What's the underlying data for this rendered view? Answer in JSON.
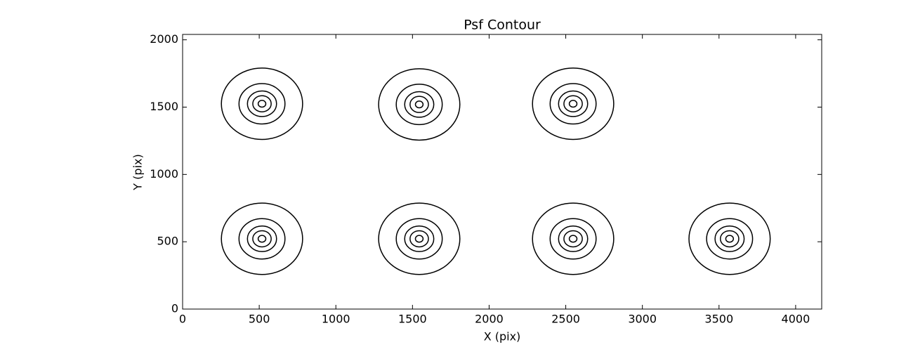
{
  "chart_data": {
    "type": "contour",
    "title": "Psf Contour",
    "x_label": "X (pix)",
    "y_label": "Y (pix)",
    "xlim": [
      0,
      4170
    ],
    "ylim": [
      0,
      2040
    ],
    "xticks": [
      0,
      500,
      1000,
      1500,
      2000,
      2500,
      3000,
      3500,
      4000
    ],
    "yticks": [
      0,
      500,
      1000,
      1500,
      2000
    ],
    "color": "#000000",
    "levels": [
      265,
      150,
      95,
      60,
      25
    ],
    "sources": [
      {
        "x": 518,
        "y": 1525
      },
      {
        "x": 1544,
        "y": 1520
      },
      {
        "x": 2548,
        "y": 1525
      },
      {
        "x": 518,
        "y": 522
      },
      {
        "x": 1544,
        "y": 522
      },
      {
        "x": 2548,
        "y": 522
      },
      {
        "x": 3569,
        "y": 522
      }
    ]
  }
}
